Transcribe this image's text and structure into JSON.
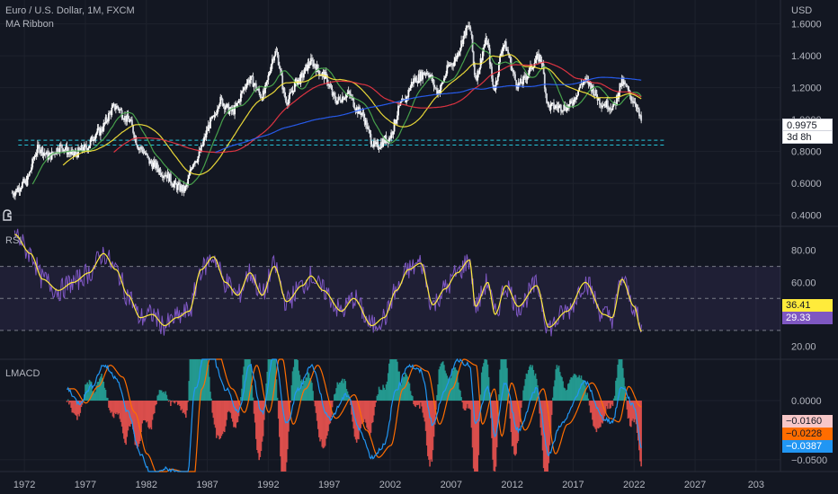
{
  "header": {
    "symbol": "Euro / U.S. Dollar, 1M, FXCM",
    "indicator_1": "MA Ribbon",
    "currency": "USD"
  },
  "price_badge": {
    "price": "0.9975",
    "countdown": "3d 8h"
  },
  "rsi_badges": {
    "ma": "36.41",
    "rsi": "29.33"
  },
  "lmacd_badges": {
    "histogram": "−0.0160",
    "signal": "−0.0228",
    "macd": "−0.0387"
  },
  "colors": {
    "background": "#131722",
    "grid": "#1e222d",
    "candle": "#ffffff",
    "ma_20": "#4caf50",
    "ma_50": "#ffeb3b",
    "ma_100": "#f23645",
    "ma_200": "#2962ff",
    "rsi_line": "#7e57c2",
    "rsi_ma": "#ffeb3b",
    "rsi_band": "#7e57c2",
    "macd": "#2196f3",
    "signal": "#ff6d00",
    "hist_pos": "#26a69a",
    "hist_neg": "#ef5350",
    "support_line": "#26c6da"
  },
  "chart_data": [
    {
      "type": "candlestick",
      "title": "Euro / U.S. Dollar, 1M, FXCM",
      "overlay": "MA Ribbon",
      "ylabel": "USD",
      "ylim": [
        0.33,
        1.75
      ],
      "y_ticks": [
        "1.6000",
        "1.4000",
        "1.2000",
        "1.0000",
        "0.8000",
        "0.6000",
        "0.4000"
      ],
      "x_ticks": [
        "1972",
        "1977",
        "1982",
        "1987",
        "1992",
        "1997",
        "2002",
        "2007",
        "2012",
        "2017",
        "2022",
        "2027",
        "203"
      ],
      "x_range": [
        1970,
        2034
      ],
      "support_lines": [
        0.87,
        0.84
      ],
      "last_price": 0.9975,
      "anchors": [
        [
          1971.0,
          0.54
        ],
        [
          1972.0,
          0.6
        ],
        [
          1973.2,
          0.82
        ],
        [
          1974.0,
          0.77
        ],
        [
          1975.0,
          0.83
        ],
        [
          1976.0,
          0.78
        ],
        [
          1977.0,
          0.82
        ],
        [
          1978.0,
          0.92
        ],
        [
          1979.5,
          1.08
        ],
        [
          1980.5,
          1.0
        ],
        [
          1981.5,
          0.82
        ],
        [
          1982.5,
          0.72
        ],
        [
          1983.5,
          0.66
        ],
        [
          1984.5,
          0.58
        ],
        [
          1985.1,
          0.56
        ],
        [
          1986.0,
          0.75
        ],
        [
          1987.5,
          1.0
        ],
        [
          1988.0,
          1.12
        ],
        [
          1989.0,
          1.05
        ],
        [
          1990.5,
          1.25
        ],
        [
          1991.5,
          1.15
        ],
        [
          1992.6,
          1.42
        ],
        [
          1993.5,
          1.12
        ],
        [
          1994.5,
          1.25
        ],
        [
          1995.5,
          1.36
        ],
        [
          1996.5,
          1.28
        ],
        [
          1997.6,
          1.12
        ],
        [
          1998.5,
          1.16
        ],
        [
          1999.5,
          1.05
        ],
        [
          2000.8,
          0.83
        ],
        [
          2001.8,
          0.88
        ],
        [
          2003.0,
          1.1
        ],
        [
          2004.0,
          1.25
        ],
        [
          2005.0,
          1.3
        ],
        [
          2005.9,
          1.18
        ],
        [
          2007.0,
          1.35
        ],
        [
          2008.5,
          1.58
        ],
        [
          2009.0,
          1.27
        ],
        [
          2009.9,
          1.49
        ],
        [
          2010.5,
          1.2
        ],
        [
          2011.3,
          1.47
        ],
        [
          2012.5,
          1.22
        ],
        [
          2014.3,
          1.39
        ],
        [
          2015.0,
          1.08
        ],
        [
          2016.5,
          1.08
        ],
        [
          2018.0,
          1.24
        ],
        [
          2019.5,
          1.1
        ],
        [
          2020.3,
          1.08
        ],
        [
          2021.0,
          1.23
        ],
        [
          2022.0,
          1.12
        ],
        [
          2022.6,
          0.99
        ]
      ],
      "moving_averages": [
        {
          "name": "MA 20",
          "color": "#4caf50"
        },
        {
          "name": "MA 50",
          "color": "#ffeb3b"
        },
        {
          "name": "MA 100",
          "color": "#f23645"
        },
        {
          "name": "MA 200",
          "color": "#2962ff"
        }
      ]
    },
    {
      "type": "line",
      "title": "RSI",
      "ylim": [
        12,
        95
      ],
      "y_ticks": [
        "80.00",
        "60.00",
        "20.00"
      ],
      "band": [
        30,
        70
      ],
      "midline": 50,
      "anchors": [
        [
          1971.2,
          90
        ],
        [
          1972.5,
          78
        ],
        [
          1973.5,
          62
        ],
        [
          1974.8,
          55
        ],
        [
          1976.0,
          60
        ],
        [
          1977.3,
          66
        ],
        [
          1978.5,
          78
        ],
        [
          1979.5,
          68
        ],
        [
          1980.5,
          52
        ],
        [
          1981.5,
          38
        ],
        [
          1982.5,
          40
        ],
        [
          1983.5,
          33
        ],
        [
          1984.5,
          38
        ],
        [
          1985.5,
          42
        ],
        [
          1986.5,
          68
        ],
        [
          1987.5,
          76
        ],
        [
          1988.5,
          60
        ],
        [
          1989.5,
          52
        ],
        [
          1990.5,
          66
        ],
        [
          1991.5,
          52
        ],
        [
          1992.5,
          70
        ],
        [
          1993.5,
          48
        ],
        [
          1994.8,
          58
        ],
        [
          1995.5,
          64
        ],
        [
          1996.5,
          55
        ],
        [
          1998.0,
          42
        ],
        [
          1999.0,
          50
        ],
        [
          2000.5,
          33
        ],
        [
          2001.5,
          38
        ],
        [
          2002.5,
          55
        ],
        [
          2003.5,
          68
        ],
        [
          2004.5,
          72
        ],
        [
          2005.5,
          46
        ],
        [
          2006.5,
          56
        ],
        [
          2007.5,
          66
        ],
        [
          2008.5,
          74
        ],
        [
          2009.0,
          45
        ],
        [
          2010.0,
          60
        ],
        [
          2010.6,
          40
        ],
        [
          2011.5,
          58
        ],
        [
          2012.5,
          45
        ],
        [
          2014.0,
          58
        ],
        [
          2015.0,
          32
        ],
        [
          2016.5,
          42
        ],
        [
          2018.0,
          60
        ],
        [
          2019.5,
          40
        ],
        [
          2020.2,
          38
        ],
        [
          2021.0,
          62
        ],
        [
          2022.0,
          45
        ],
        [
          2022.6,
          29.33
        ]
      ],
      "last_rsi": 29.33,
      "last_ma": 36.41
    },
    {
      "type": "line",
      "title": "LMACD",
      "ylim": [
        -0.06,
        0.035
      ],
      "y_ticks": [
        "0.0000",
        "−0.0500"
      ],
      "macd_anchors": [
        [
          1975.5,
          0.01
        ],
        [
          1976.5,
          -0.002
        ],
        [
          1977.5,
          0.012
        ],
        [
          1978.5,
          0.03
        ],
        [
          1979.5,
          0.02
        ],
        [
          1980.5,
          -0.01
        ],
        [
          1981.5,
          -0.045
        ],
        [
          1982.5,
          -0.065
        ],
        [
          1983.5,
          -0.058
        ],
        [
          1984.5,
          -0.06
        ],
        [
          1985.3,
          -0.07
        ],
        [
          1986.0,
          0.01
        ],
        [
          1987.0,
          0.05
        ],
        [
          1988.5,
          0.01
        ],
        [
          1989.5,
          -0.01
        ],
        [
          1990.5,
          0.03
        ],
        [
          1991.5,
          -0.01
        ],
        [
          1992.5,
          0.04
        ],
        [
          1993.5,
          -0.02
        ],
        [
          1994.5,
          0.01
        ],
        [
          1995.5,
          0.03
        ],
        [
          1997.0,
          -0.015
        ],
        [
          1998.5,
          0.005
        ],
        [
          1999.5,
          -0.025
        ],
        [
          2000.5,
          -0.048
        ],
        [
          2001.5,
          -0.038
        ],
        [
          2002.5,
          0.01
        ],
        [
          2003.5,
          0.03
        ],
        [
          2004.5,
          0.025
        ],
        [
          2005.5,
          -0.02
        ],
        [
          2006.5,
          0.01
        ],
        [
          2007.5,
          0.035
        ],
        [
          2008.5,
          0.03
        ],
        [
          2009.0,
          -0.02
        ],
        [
          2010.0,
          0.01
        ],
        [
          2010.6,
          -0.03
        ],
        [
          2011.4,
          0.015
        ],
        [
          2012.5,
          -0.025
        ],
        [
          2014.0,
          0.01
        ],
        [
          2015.0,
          -0.045
        ],
        [
          2016.0,
          -0.02
        ],
        [
          2018.0,
          0.015
        ],
        [
          2019.5,
          -0.015
        ],
        [
          2020.2,
          -0.018
        ],
        [
          2021.0,
          0.012
        ],
        [
          2022.0,
          -0.005
        ],
        [
          2022.6,
          -0.0387
        ]
      ],
      "last_macd": -0.0387,
      "last_signal": -0.0228,
      "last_histogram": -0.016
    }
  ]
}
